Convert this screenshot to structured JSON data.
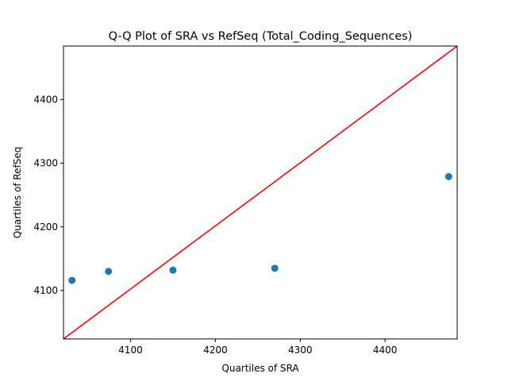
{
  "chart_data": {
    "type": "scatter",
    "title": "Q-Q Plot of SRA vs RefSeq (Total_Coding_Sequences)",
    "xlabel": "Quartiles of SRA",
    "ylabel": "Quartiles of RefSeq",
    "xlim": [
      4021,
      4485
    ],
    "ylim": [
      4024,
      4484
    ],
    "x_ticks": [
      4100,
      4200,
      4300,
      4400
    ],
    "y_ticks": [
      4100,
      4200,
      4300,
      4400
    ],
    "grid": false,
    "series": [
      {
        "x": [
          4031,
          4074,
          4150,
          4270,
          4475
        ],
        "y": [
          4116,
          4130,
          4132,
          4135,
          4279
        ],
        "color": "#1f77b4"
      }
    ],
    "reference_line": {
      "points": [
        [
          4021,
          4024
        ],
        [
          4485,
          4484
        ]
      ],
      "color": "#ff0000"
    }
  }
}
